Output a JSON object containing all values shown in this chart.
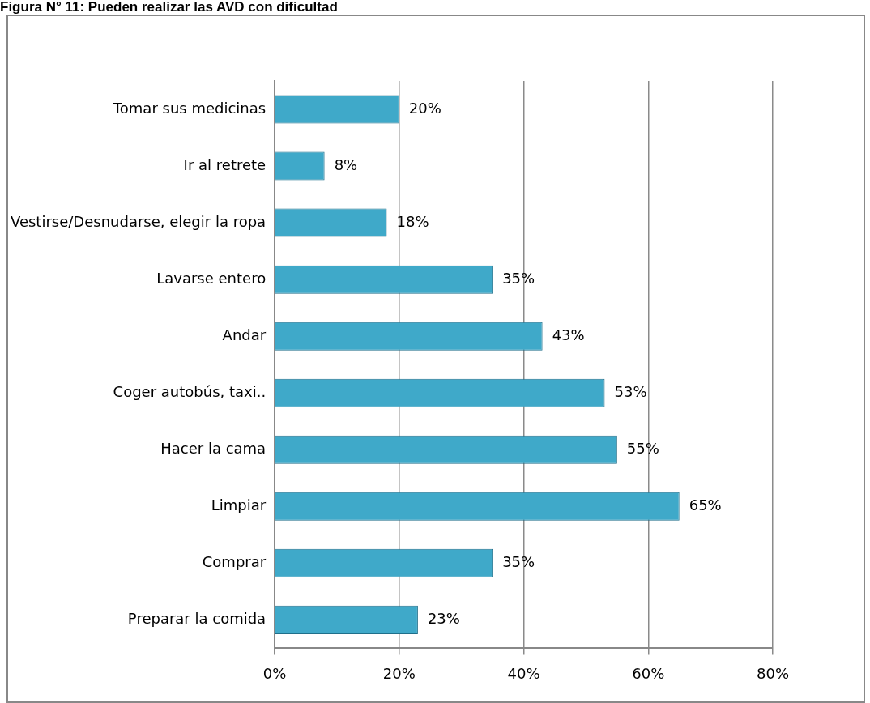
{
  "chart_data": {
    "type": "bar",
    "orientation": "horizontal",
    "title": "Figura N° 11: Pueden realizar las AVD con dificultad",
    "categories": [
      "Tomar sus medicinas",
      "Ir al retrete",
      "Vestirse/Desnudarse, elegir la ropa",
      "Lavarse entero",
      "Andar",
      "Coger autobús, taxi..",
      "Hacer la cama",
      "Limpiar",
      "Comprar",
      "Preparar la comida"
    ],
    "values": [
      20,
      8,
      18,
      35,
      43,
      53,
      55,
      65,
      35,
      23
    ],
    "value_labels": [
      "20%",
      "8%",
      "18%",
      "35%",
      "43%",
      "53%",
      "55%",
      "65%",
      "35%",
      "23%"
    ],
    "color": "#3fa9c9",
    "xlim": [
      0,
      80
    ],
    "xticks": [
      {
        "value": 0,
        "label": "0%"
      },
      {
        "value": 20,
        "label": "20%"
      },
      {
        "value": 40,
        "label": "40%"
      },
      {
        "value": 60,
        "label": "60%"
      },
      {
        "value": 80,
        "label": "80%"
      }
    ],
    "grid": "x",
    "legend": false
  }
}
